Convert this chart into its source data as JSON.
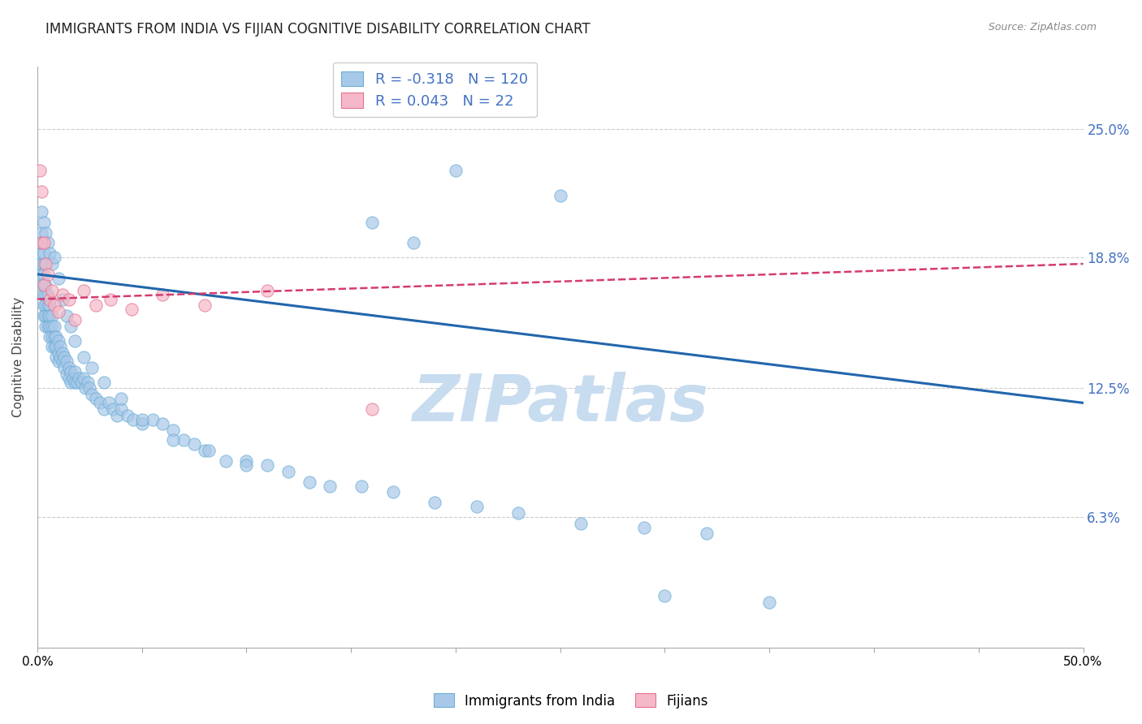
{
  "title": "IMMIGRANTS FROM INDIA VS FIJIAN COGNITIVE DISABILITY CORRELATION CHART",
  "source": "Source: ZipAtlas.com",
  "ylabel": "Cognitive Disability",
  "x_min": 0.0,
  "x_max": 0.5,
  "y_min": 0.0,
  "y_max": 0.28,
  "ytick_vals": [
    0.0,
    0.063,
    0.125,
    0.188,
    0.25
  ],
  "ytick_labels": [
    "",
    "6.3%",
    "12.5%",
    "18.8%",
    "25.0%"
  ],
  "xtick_vals": [
    0.0,
    0.05,
    0.1,
    0.15,
    0.2,
    0.25,
    0.3,
    0.35,
    0.4,
    0.45,
    0.5
  ],
  "xtick_labels": [
    "0.0%",
    "",
    "",
    "",
    "",
    "",
    "",
    "",
    "",
    "",
    "50.0%"
  ],
  "blue_color": "#A8C8E8",
  "blue_edge_color": "#6BAED6",
  "pink_color": "#F4B8C8",
  "pink_edge_color": "#E87090",
  "blue_line_color": "#2166AC",
  "pink_line_color": "#D63B6E",
  "grid_color": "#CCCCCC",
  "watermark_color": "#C8DCF0",
  "legend_R_blue": "-0.318",
  "legend_N_blue": "120",
  "legend_R_pink": "0.043",
  "legend_N_pink": "22",
  "legend_label_blue": "Immigrants from India",
  "legend_label_pink": "Fijians",
  "title_fontsize": 12,
  "axis_label_fontsize": 11,
  "tick_fontsize": 11,
  "blue_trend_y0": 0.18,
  "blue_trend_y1": 0.118,
  "pink_trend_y0": 0.168,
  "pink_trend_y1": 0.185,
  "blue_scatter_x": [
    0.001,
    0.001,
    0.001,
    0.002,
    0.002,
    0.002,
    0.002,
    0.002,
    0.003,
    0.003,
    0.003,
    0.003,
    0.003,
    0.003,
    0.003,
    0.004,
    0.004,
    0.004,
    0.004,
    0.004,
    0.005,
    0.005,
    0.005,
    0.005,
    0.006,
    0.006,
    0.006,
    0.006,
    0.007,
    0.007,
    0.007,
    0.007,
    0.008,
    0.008,
    0.008,
    0.009,
    0.009,
    0.009,
    0.01,
    0.01,
    0.01,
    0.011,
    0.011,
    0.012,
    0.012,
    0.013,
    0.013,
    0.014,
    0.014,
    0.015,
    0.015,
    0.016,
    0.016,
    0.017,
    0.018,
    0.018,
    0.019,
    0.02,
    0.021,
    0.022,
    0.023,
    0.024,
    0.025,
    0.026,
    0.028,
    0.03,
    0.032,
    0.034,
    0.036,
    0.038,
    0.04,
    0.043,
    0.046,
    0.05,
    0.055,
    0.06,
    0.065,
    0.07,
    0.075,
    0.08,
    0.09,
    0.1,
    0.11,
    0.12,
    0.13,
    0.14,
    0.155,
    0.17,
    0.19,
    0.21,
    0.23,
    0.26,
    0.29,
    0.32,
    0.2,
    0.25,
    0.16,
    0.18,
    0.3,
    0.35,
    0.002,
    0.003,
    0.004,
    0.005,
    0.006,
    0.007,
    0.008,
    0.01,
    0.012,
    0.014,
    0.016,
    0.018,
    0.022,
    0.026,
    0.032,
    0.04,
    0.05,
    0.065,
    0.082,
    0.1
  ],
  "blue_scatter_y": [
    0.19,
    0.185,
    0.195,
    0.2,
    0.195,
    0.185,
    0.18,
    0.175,
    0.185,
    0.18,
    0.175,
    0.17,
    0.165,
    0.16,
    0.19,
    0.175,
    0.17,
    0.165,
    0.16,
    0.155,
    0.17,
    0.165,
    0.16,
    0.155,
    0.165,
    0.16,
    0.155,
    0.15,
    0.16,
    0.155,
    0.15,
    0.145,
    0.155,
    0.15,
    0.145,
    0.15,
    0.145,
    0.14,
    0.148,
    0.142,
    0.138,
    0.145,
    0.14,
    0.142,
    0.138,
    0.14,
    0.135,
    0.138,
    0.132,
    0.135,
    0.13,
    0.133,
    0.128,
    0.13,
    0.128,
    0.133,
    0.128,
    0.13,
    0.128,
    0.13,
    0.125,
    0.128,
    0.125,
    0.122,
    0.12,
    0.118,
    0.115,
    0.118,
    0.115,
    0.112,
    0.115,
    0.112,
    0.11,
    0.108,
    0.11,
    0.108,
    0.105,
    0.1,
    0.098,
    0.095,
    0.09,
    0.09,
    0.088,
    0.085,
    0.08,
    0.078,
    0.078,
    0.075,
    0.07,
    0.068,
    0.065,
    0.06,
    0.058,
    0.055,
    0.23,
    0.218,
    0.205,
    0.195,
    0.025,
    0.022,
    0.21,
    0.205,
    0.2,
    0.195,
    0.19,
    0.185,
    0.188,
    0.178,
    0.168,
    0.16,
    0.155,
    0.148,
    0.14,
    0.135,
    0.128,
    0.12,
    0.11,
    0.1,
    0.095,
    0.088
  ],
  "pink_scatter_x": [
    0.001,
    0.002,
    0.002,
    0.003,
    0.003,
    0.004,
    0.005,
    0.006,
    0.007,
    0.008,
    0.01,
    0.012,
    0.015,
    0.018,
    0.022,
    0.028,
    0.035,
    0.045,
    0.06,
    0.08,
    0.11,
    0.16
  ],
  "pink_scatter_y": [
    0.23,
    0.22,
    0.195,
    0.195,
    0.175,
    0.185,
    0.18,
    0.168,
    0.172,
    0.165,
    0.162,
    0.17,
    0.168,
    0.158,
    0.172,
    0.165,
    0.168,
    0.163,
    0.17,
    0.165,
    0.172,
    0.115
  ]
}
